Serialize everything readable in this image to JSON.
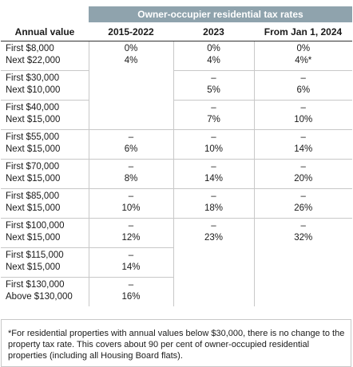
{
  "header": {
    "title": "Owner-occupier residential tax rates"
  },
  "columns": [
    "Annual value",
    "2015-2022",
    "2023",
    "From Jan 1, 2024"
  ],
  "rows": [
    {
      "label": [
        "First $8,000",
        "Next $22,000"
      ],
      "c2015": [
        "0%",
        "4%"
      ],
      "c2023": [
        "0%",
        "4%"
      ],
      "c2024": [
        "0%",
        "4%*"
      ]
    },
    {
      "label": [
        "First $30,000",
        "Next $10,000"
      ],
      "c2023": [
        "–",
        "5%"
      ],
      "c2024": [
        "–",
        "6%"
      ]
    },
    {
      "label": [
        "First $40,000",
        "Next $15,000"
      ],
      "c2023": [
        "–",
        "7%"
      ],
      "c2024": [
        "–",
        "10%"
      ]
    },
    {
      "label": [
        "First $55,000",
        "Next $15,000"
      ],
      "c2015": [
        "–",
        "6%"
      ],
      "c2023": [
        "–",
        "10%"
      ],
      "c2024": [
        "–",
        "14%"
      ]
    },
    {
      "label": [
        "First $70,000",
        "Next $15,000"
      ],
      "c2015": [
        "–",
        "8%"
      ],
      "c2023": [
        "–",
        "14%"
      ],
      "c2024": [
        "–",
        "20%"
      ]
    },
    {
      "label": [
        "First $85,000",
        "Next $15,000"
      ],
      "c2015": [
        "–",
        "10%"
      ],
      "c2023": [
        "–",
        "18%"
      ],
      "c2024": [
        "–",
        "26%"
      ]
    },
    {
      "label": [
        "First $100,000",
        "Next $15,000"
      ],
      "c2015": [
        "–",
        "12%"
      ],
      "c2023": [
        "–",
        "23%"
      ],
      "c2024": [
        "–",
        "32%"
      ]
    },
    {
      "label": [
        "First $115,000",
        "Next $15,000"
      ],
      "c2015": [
        "–",
        "14%"
      ]
    },
    {
      "label": [
        "First $130,000",
        "Above $130,000"
      ],
      "c2015": [
        "–",
        "16%"
      ]
    }
  ],
  "footnote": "*For residential properties with annual values below $30,000, there is no change to the property tax rate. This covers about 90 per cent of owner-occupied residential properties (including all Housing Board flats)."
}
